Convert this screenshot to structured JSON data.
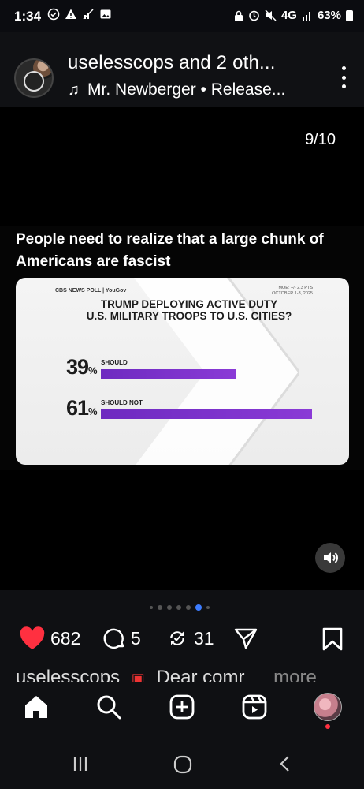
{
  "status_bar": {
    "time": "1:34",
    "network": "4G",
    "battery": "63%"
  },
  "post": {
    "author_line": "uselesscops and 2 oth...",
    "music_line": "Mr. Newberger • Release...",
    "page_counter": "9/10",
    "headline": "People need to realize that a large chunk of Americans are fascist",
    "graphic": {
      "source_logo": "CBS NEWS POLL | YouGov",
      "moe_line1": "MOE: +/- 2.3 PTS",
      "moe_line2": "OCTOBER 1-3, 2025",
      "title_line1": "TRUMP DEPLOYING ACTIVE DUTY",
      "title_line2": "U.S. MILITARY TROOPS TO U.S. CITIES?",
      "accent_color": "#7b32c9"
    }
  },
  "chart_data": {
    "type": "bar",
    "title": "TRUMP DEPLOYING ACTIVE DUTY U.S. MILITARY TROOPS TO U.S. CITIES?",
    "categories": [
      "SHOULD",
      "SHOULD NOT"
    ],
    "values": [
      39,
      61
    ],
    "value_labels": [
      "39",
      "61"
    ],
    "unit": "%",
    "xlim": [
      0,
      61
    ]
  },
  "carousel": {
    "total": 10,
    "current": 9
  },
  "actions": {
    "likes": "682",
    "comments": "5",
    "reposts": "31"
  },
  "caption_peek": {
    "text": "uselesscops",
    "text2": "Dear comr",
    "more": "more"
  },
  "colors": {
    "like_red": "#ff3040",
    "active_dot": "#3c7cff"
  }
}
